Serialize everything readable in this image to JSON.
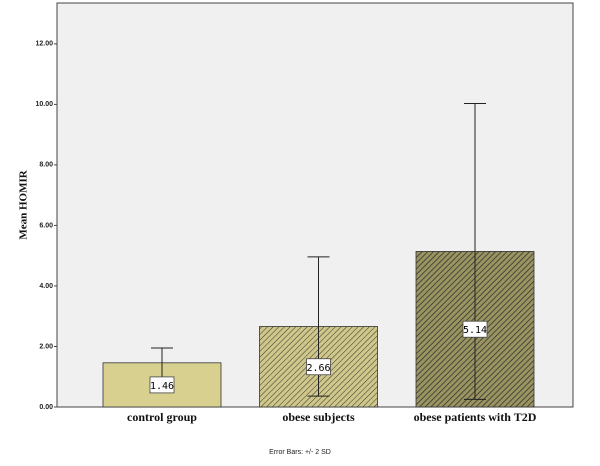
{
  "chart_data": {
    "type": "bar",
    "ylabel": "Mean HOMIR",
    "categories": [
      "control group",
      "obese subjects",
      "obese patients with T2D"
    ],
    "values": [
      1.46,
      2.66,
      5.14
    ],
    "errors": [
      0.49,
      2.3,
      4.89
    ],
    "colors": [
      "#d8d08f",
      "#cfc78a",
      "#9a9560"
    ],
    "hatch": [
      false,
      true,
      true
    ],
    "ylim": [
      0,
      13.35
    ],
    "yticks": [
      {
        "value": 0,
        "label": "0.00"
      },
      {
        "value": 2,
        "label": "2.00"
      },
      {
        "value": 4,
        "label": "4.00"
      },
      {
        "value": 6,
        "label": "6.00"
      },
      {
        "value": 8,
        "label": "8.00"
      },
      {
        "value": 10,
        "label": "10.00"
      },
      {
        "value": 12,
        "label": "12.00"
      }
    ],
    "note": "Error Bars: +/- 2 SD"
  }
}
